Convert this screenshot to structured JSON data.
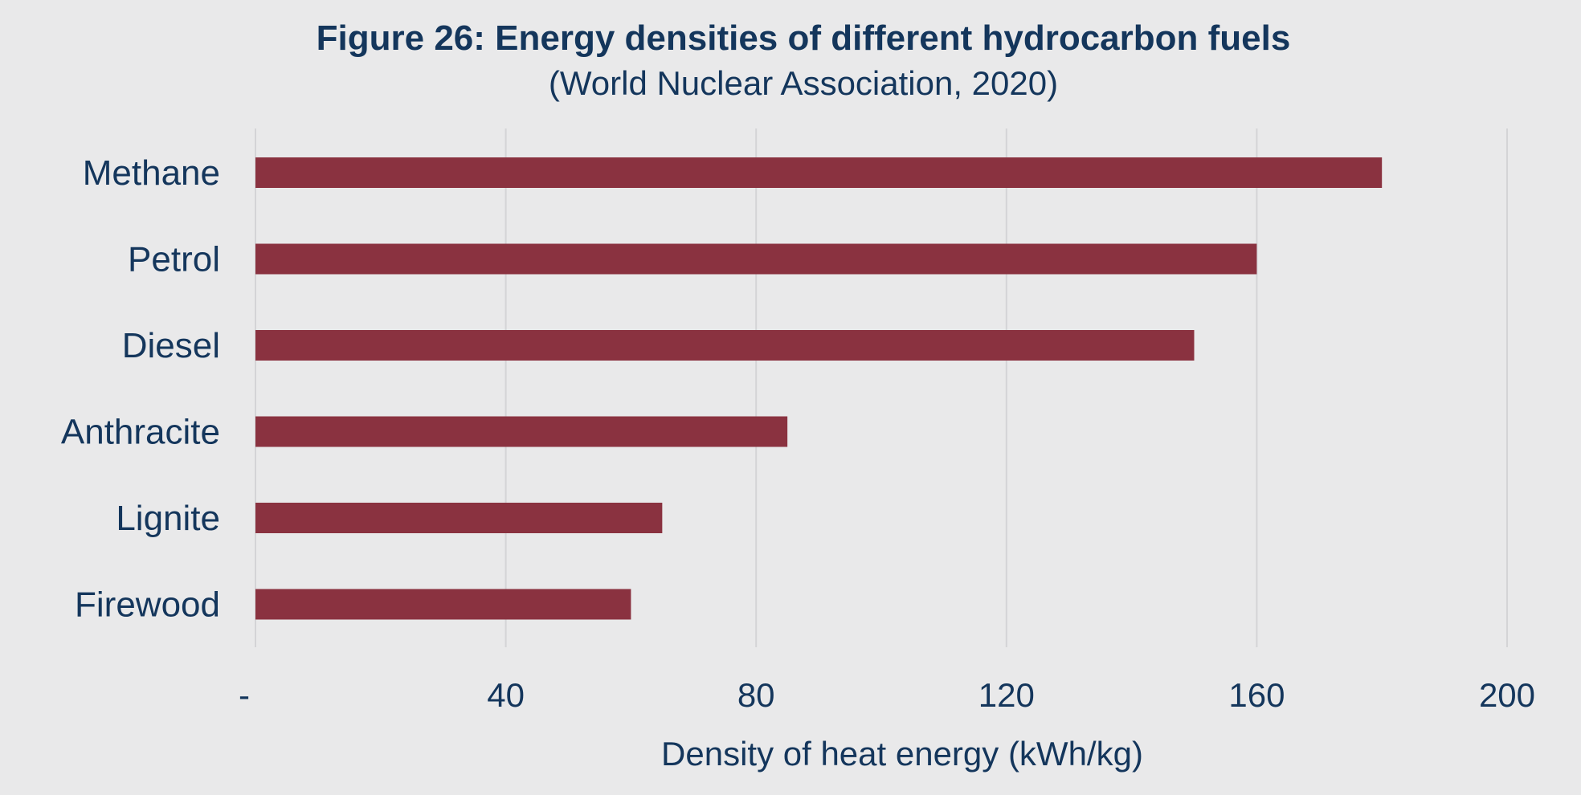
{
  "chart_data": {
    "type": "bar",
    "orientation": "horizontal",
    "title": "Figure 26: Energy densities of different hydrocarbon fuels",
    "subtitle": "(World Nuclear Association, 2020)",
    "categories": [
      "Methane",
      "Petrol",
      "Diesel",
      "Anthracite",
      "Lignite",
      "Firewood"
    ],
    "values": [
      180,
      160,
      150,
      85,
      65,
      60
    ],
    "xlabel": "Density of heat energy (kWh/kg)",
    "ylabel": "",
    "xlim": [
      0,
      200
    ],
    "x_ticks": [
      0,
      40,
      80,
      120,
      160,
      200
    ],
    "x_tick_labels": [
      "-",
      "40",
      "80",
      "120",
      "160",
      "200"
    ],
    "grid": "vertical",
    "legend": "none",
    "colors": {
      "bar": "#8a3240",
      "text": "#14365c",
      "background": "#e9e9ea",
      "grid": "#d4d4d6"
    }
  }
}
